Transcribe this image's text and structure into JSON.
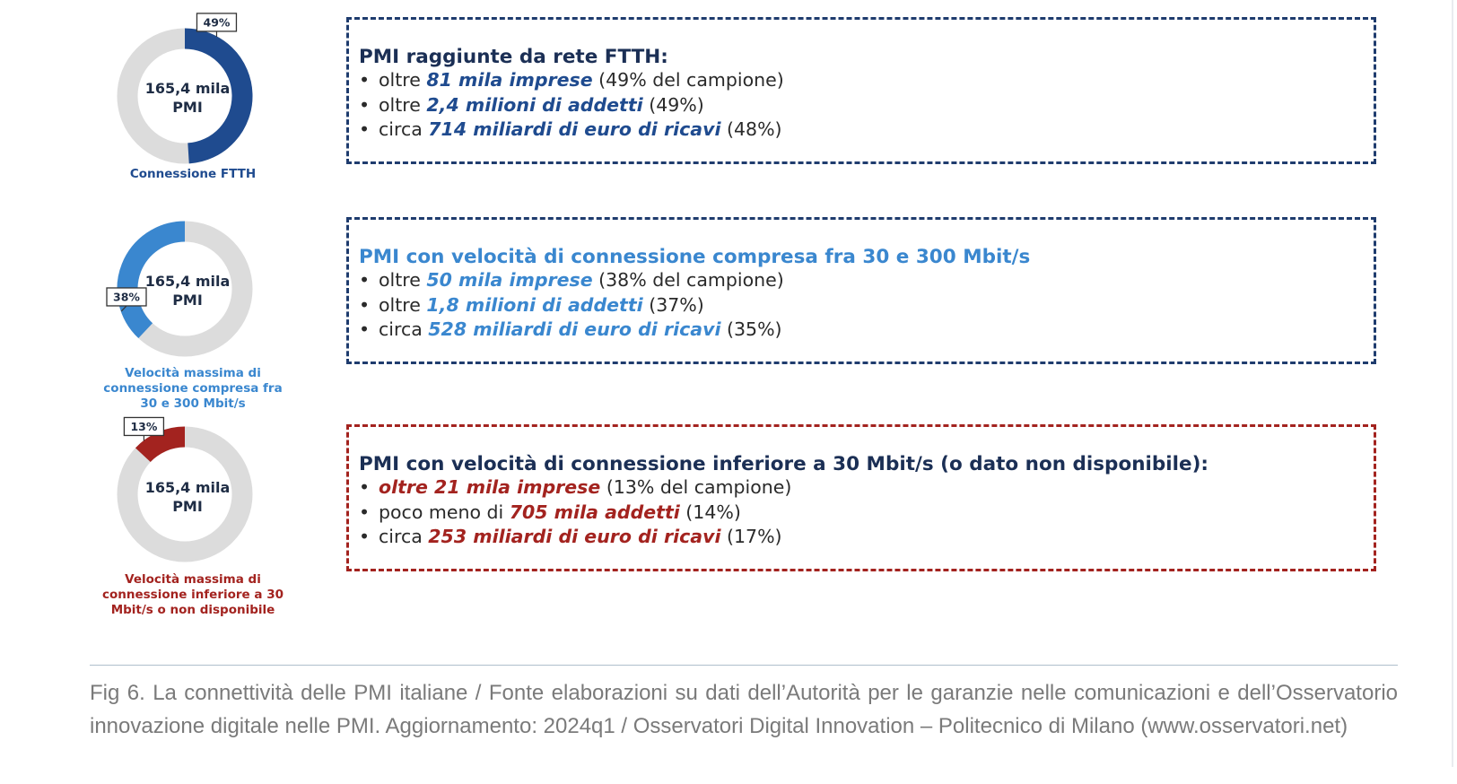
{
  "colors": {
    "ftth": "#1f4b8f",
    "mid": "#3a87cf",
    "low": "#a3231f",
    "track": "#dcdcdc",
    "navy_title": "#1b2f55",
    "box_navy_border": "#1f3c6e",
    "box_red_border": "#a3231f"
  },
  "chart_data": [
    {
      "type": "pie",
      "variant": "donut",
      "center_label": "165,4 mila PMI",
      "values": [
        49
      ],
      "value_labels": [
        "49%"
      ],
      "caption": "Connessione FTTH"
    },
    {
      "type": "pie",
      "variant": "donut",
      "center_label": "165,4 mila PMI",
      "values": [
        38
      ],
      "value_labels": [
        "38%"
      ],
      "caption": "Velocità massima di connessione compresa fra 30 e 300 Mbit/s"
    },
    {
      "type": "pie",
      "variant": "donut",
      "center_label": "165,4 mila PMI",
      "values": [
        13
      ],
      "value_labels": [
        "13%"
      ],
      "caption": "Velocità massima di connessione inferiore a 30 Mbit/s o non disponibile"
    }
  ],
  "donuts": [
    {
      "center": [
        "165,4 mila",
        "PMI"
      ],
      "percent": "49%",
      "fraction": 0.49,
      "direction": "cw",
      "color": "#1f4b8f",
      "caption_lines": [
        "Connessione FTTH"
      ],
      "caption_color": "#1f4b8f"
    },
    {
      "center": [
        "165,4 mila",
        "PMI"
      ],
      "percent": "38%",
      "fraction": 0.38,
      "direction": "ccw",
      "color": "#3a87cf",
      "caption_lines": [
        "Velocità massima di",
        "connessione compresa fra",
        "30 e 300 Mbit/s"
      ],
      "caption_color": "#3a87cf"
    },
    {
      "center": [
        "165,4 mila",
        "PMI"
      ],
      "percent": "13%",
      "fraction": 0.13,
      "direction": "ccw",
      "color": "#a3231f",
      "caption_lines": [
        "Velocità massima di",
        "connessione inferiore a 30",
        "Mbit/s o non disponibile"
      ],
      "caption_color": "#a3231f"
    }
  ],
  "boxes": [
    {
      "title": "PMI raggiunte da rete FTTH:",
      "title_color": "#1b2f55",
      "accent": "#1f4b8f",
      "border_color": "#1f3c6e",
      "items": [
        {
          "before": "oltre ",
          "highlight": "81 mila imprese",
          "after": " (49% del campione)"
        },
        {
          "before": "oltre ",
          "highlight": "2,4 milioni di addetti",
          "after": " (49%)"
        },
        {
          "before": "circa ",
          "highlight": "714 miliardi di euro di ricavi",
          "after": " (48%)"
        }
      ]
    },
    {
      "title": "PMI con velocità di connessione compresa fra 30 e 300 Mbit/s",
      "title_color": "#3a87cf",
      "accent": "#3a87cf",
      "border_color": "#1f3c6e",
      "items": [
        {
          "before": "oltre ",
          "highlight": "50 mila imprese",
          "after": " (38% del campione)"
        },
        {
          "before": "oltre ",
          "highlight": "1,8 milioni di addetti",
          "after": " (37%)"
        },
        {
          "before": "circa ",
          "highlight": "528 miliardi di euro di ricavi",
          "after": " (35%)"
        }
      ]
    },
    {
      "title": "PMI con velocità di connessione inferiore a 30 Mbit/s (o dato non disponibile):",
      "title_color": "#1b2f55",
      "accent": "#a3231f",
      "border_color": "#a3231f",
      "items": [
        {
          "before": "",
          "highlight": "oltre 21 mila imprese",
          "after": " (13% del campione)"
        },
        {
          "before": "poco meno di ",
          "highlight": "705 mila addetti",
          "after": " (14%)"
        },
        {
          "before": "circa ",
          "highlight": "253 miliardi di euro di ricavi",
          "after": " (17%)"
        }
      ]
    }
  ],
  "bullet_char": "•",
  "caption": "Fig 6. La connettività delle PMI italiane / Fonte elaborazioni su dati dell’Autorità per le garanzie nelle comunicazioni e dell’Osservatorio innovazione digitale nelle PMI. Aggiornamento: 2024q1 / Osservatori Digital Innovation – Politecnico di Milano (www.osservatori.net)"
}
